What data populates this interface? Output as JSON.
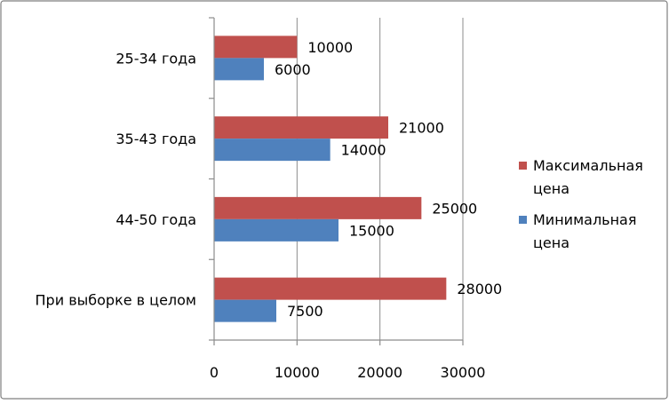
{
  "chart_data": {
    "type": "bar",
    "orientation": "horizontal",
    "categories": [
      "25-34 года",
      "35-43 года",
      "44-50 года",
      "При выборке в целом"
    ],
    "series": [
      {
        "name": "Максимальная цена",
        "color": "#c0504d",
        "values": [
          10000,
          21000,
          25000,
          28000
        ]
      },
      {
        "name": "Минимальная цена",
        "color": "#4f81bd",
        "values": [
          6000,
          14000,
          15000,
          7500
        ]
      }
    ],
    "x_ticks": [
      "0",
      "10000",
      "20000",
      "30000"
    ],
    "xlim": [
      0,
      30000
    ],
    "grid": "vertical",
    "legend": {
      "placement": "right",
      "items": [
        {
          "lines": [
            "Максимальная",
            "цена"
          ],
          "color": "#c0504d"
        },
        {
          "lines": [
            "Минимальная",
            "цена"
          ],
          "color": "#4f81bd"
        }
      ]
    }
  }
}
